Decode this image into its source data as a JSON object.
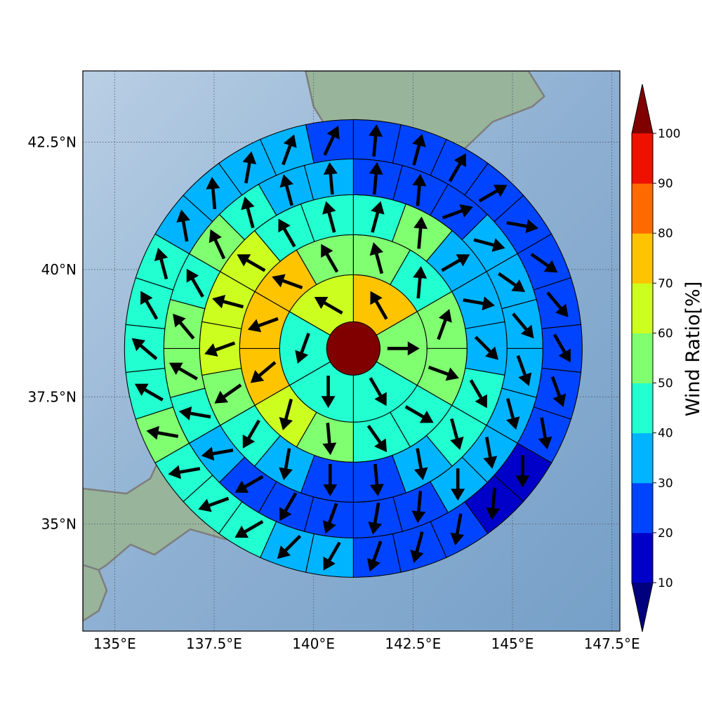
{
  "chart_data": {
    "type": "heatmap",
    "title": "",
    "x_ticks": [
      {
        "label": "135°E",
        "value": 135
      },
      {
        "label": "137.5°E",
        "value": 137.5
      },
      {
        "label": "140°E",
        "value": 140
      },
      {
        "label": "142.5°E",
        "value": 142.5
      },
      {
        "label": "145°E",
        "value": 145
      },
      {
        "label": "147.5°E",
        "value": 147.5
      }
    ],
    "y_ticks": [
      {
        "label": "42.5°N",
        "value": 42.5
      },
      {
        "label": "40°N",
        "value": 40
      },
      {
        "label": "37.5°N",
        "value": 37.5
      },
      {
        "label": "35°N",
        "value": 35
      }
    ],
    "xlim": [
      134.2,
      147.7
    ],
    "ylim": [
      32.9,
      43.9
    ],
    "center": {
      "lon": 141.0,
      "lat": 38.45
    },
    "grid": true,
    "colorbar": {
      "label": "Wind Ratio[%]",
      "ticks": [
        "10",
        "20",
        "30",
        "40",
        "50",
        "60",
        "70",
        "80",
        "90",
        "100"
      ],
      "boundaries": [
        10,
        20,
        30,
        40,
        50,
        60,
        70,
        80,
        90,
        100
      ],
      "colors": [
        "#0000c8",
        "#0044ff",
        "#00b4ff",
        "#22ffd0",
        "#80ff70",
        "#ccff20",
        "#ffc400",
        "#ff6a00",
        "#ee1100"
      ],
      "under_color": "#00007f",
      "over_color": "#800000",
      "extend": "both"
    },
    "core_value": 100,
    "ring_sector_counts": [
      6,
      12,
      18,
      24,
      30
    ],
    "rings": [
      [
        75,
        55,
        45,
        45,
        40,
        65
      ],
      [
        55,
        45,
        55,
        55,
        45,
        45,
        55,
        65,
        75,
        75,
        75,
        55
      ],
      [
        45,
        55,
        35,
        35,
        35,
        45,
        45,
        35,
        25,
        25,
        35,
        45,
        55,
        65,
        65,
        65,
        45,
        45
      ],
      [
        25,
        25,
        25,
        35,
        35,
        35,
        35,
        35,
        35,
        35,
        25,
        25,
        25,
        25,
        25,
        35,
        45,
        55,
        55,
        45,
        55,
        45,
        35,
        35
      ],
      [
        25,
        25,
        25,
        25,
        25,
        25,
        25,
        25,
        25,
        25,
        15,
        15,
        25,
        25,
        25,
        35,
        35,
        45,
        45,
        45,
        55,
        45,
        45,
        45,
        45,
        35,
        35,
        35,
        35,
        25
      ]
    ],
    "wind_direction_deg": [
      [
        330,
        90,
        150,
        180,
        200,
        300
      ],
      [
        345,
        5,
        20,
        110,
        120,
        145,
        175,
        195,
        230,
        250,
        290,
        330
      ],
      [
        15,
        5,
        60,
        100,
        135,
        150,
        165,
        170,
        175,
        180,
        190,
        210,
        235,
        250,
        285,
        300,
        330,
        345
      ],
      [
        5,
        5,
        70,
        105,
        125,
        140,
        160,
        165,
        170,
        180,
        185,
        190,
        200,
        210,
        240,
        260,
        280,
        300,
        320,
        330,
        335,
        345,
        345,
        355
      ],
      [
        5,
        15,
        30,
        60,
        100,
        125,
        140,
        150,
        160,
        170,
        180,
        185,
        190,
        195,
        200,
        210,
        225,
        240,
        250,
        260,
        280,
        300,
        310,
        330,
        345,
        350,
        355,
        10,
        20,
        25
      ]
    ],
    "map_features": {
      "land": [
        [
          [
            134.2,
            33.9
          ],
          [
            134.8,
            34.2
          ],
          [
            135.4,
            34.6
          ],
          [
            136.0,
            34.4
          ],
          [
            136.9,
            34.9
          ],
          [
            137.8,
            34.7
          ],
          [
            138.8,
            35.0
          ],
          [
            139.4,
            35.3
          ],
          [
            139.9,
            35.0
          ],
          [
            140.3,
            35.3
          ],
          [
            140.6,
            36.2
          ],
          [
            140.8,
            37.0
          ],
          [
            141.0,
            38.0
          ],
          [
            141.5,
            38.3
          ],
          [
            141.9,
            39.0
          ],
          [
            142.0,
            39.8
          ],
          [
            141.6,
            40.5
          ],
          [
            141.4,
            41.3
          ],
          [
            140.9,
            41.3
          ],
          [
            140.2,
            41.1
          ],
          [
            140.1,
            40.4
          ],
          [
            139.9,
            40.0
          ],
          [
            140.0,
            39.2
          ],
          [
            139.6,
            38.6
          ],
          [
            139.3,
            38.1
          ],
          [
            138.6,
            37.5
          ],
          [
            137.8,
            37.1
          ],
          [
            137.3,
            37.3
          ],
          [
            137.0,
            36.9
          ],
          [
            136.7,
            37.3
          ],
          [
            136.3,
            36.6
          ],
          [
            135.9,
            35.9
          ],
          [
            135.3,
            35.6
          ],
          [
            134.2,
            35.7
          ]
        ],
        [
          [
            140.3,
            41.6
          ],
          [
            140.6,
            42.0
          ],
          [
            141.2,
            42.3
          ],
          [
            141.8,
            42.6
          ],
          [
            142.8,
            42.2
          ],
          [
            143.3,
            42.0
          ],
          [
            144.5,
            42.9
          ],
          [
            145.5,
            43.2
          ],
          [
            145.8,
            43.4
          ],
          [
            145.4,
            43.9
          ],
          [
            139.8,
            43.9
          ],
          [
            140.0,
            43.2
          ],
          [
            140.4,
            42.7
          ],
          [
            140.0,
            42.3
          ]
        ],
        [
          [
            138.2,
            38.3
          ],
          [
            138.55,
            38.05
          ],
          [
            138.5,
            37.8
          ],
          [
            138.2,
            37.85
          ],
          [
            138.2,
            38.3
          ]
        ],
        [
          [
            134.2,
            33.1
          ],
          [
            134.6,
            33.3
          ],
          [
            134.8,
            33.7
          ],
          [
            134.6,
            34.1
          ],
          [
            134.2,
            34.2
          ]
        ]
      ]
    }
  }
}
